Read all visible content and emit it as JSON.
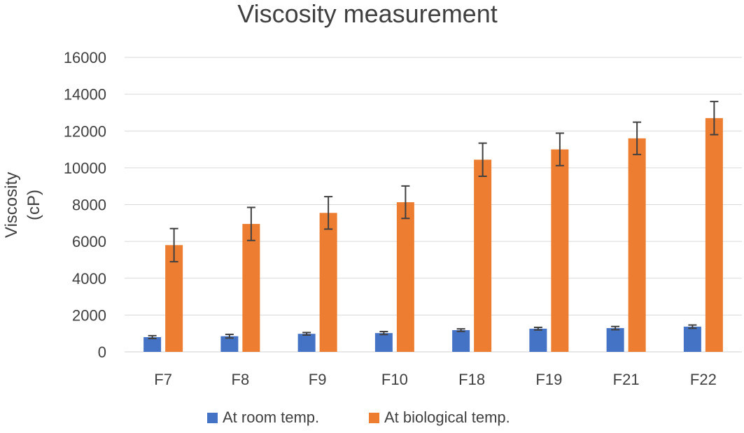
{
  "chart_data": {
    "type": "bar",
    "title": "Viscosity measurement",
    "xlabel": "",
    "ylabel_lines": [
      "Viscosity",
      "(cP)"
    ],
    "categories": [
      "F7",
      "F8",
      "F9",
      "F10",
      "F18",
      "F19",
      "F21",
      "F22"
    ],
    "ylim": [
      0,
      16000
    ],
    "yticks": [
      0,
      2000,
      4000,
      6000,
      8000,
      10000,
      12000,
      14000,
      16000
    ],
    "grid": true,
    "legend_position": "bottom",
    "series": [
      {
        "name": "At room temp.",
        "color": "#4472c4",
        "values": [
          800,
          850,
          980,
          1020,
          1180,
          1260,
          1290,
          1370
        ],
        "errors": [
          80,
          100,
          70,
          80,
          70,
          70,
          90,
          90
        ]
      },
      {
        "name": "At biological temp.",
        "color": "#ed7d31",
        "values": [
          5800,
          6950,
          7550,
          8130,
          10440,
          11000,
          11600,
          12700
        ],
        "errors": [
          900,
          900,
          880,
          880,
          900,
          880,
          880,
          900
        ]
      }
    ]
  }
}
